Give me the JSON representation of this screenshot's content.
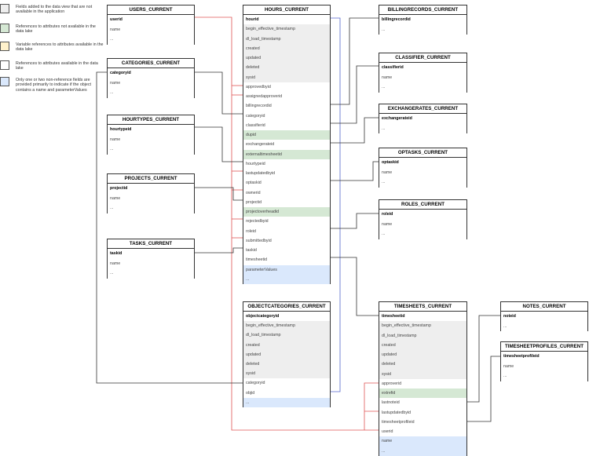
{
  "legend": [
    {
      "text": "Fields added to the data view that are not available in the application",
      "color": "#eeeeee"
    },
    {
      "text": "References to attributes not available in the data lake",
      "color": "#d5e8d4"
    },
    {
      "text": "Variable references to attributes available in the data lake",
      "color": "#fff2cc"
    },
    {
      "text": "References to attributes available in the data lake",
      "color": "#ffffff"
    },
    {
      "text": "Only one or two non-reference fields are provided primarily to indicate if the object contains a name and parameterValues",
      "color": "#dae8fc"
    }
  ],
  "tables": [
    {
      "title": "USERS_CURRENT",
      "rows": [
        {
          "text": "userid",
          "fill": "#ffffff"
        },
        {
          "text": "name",
          "fill": "#ffffff"
        },
        {
          "text": "...",
          "fill": "#ffffff"
        }
      ]
    },
    {
      "title": "CATEGORIES_CURRENT",
      "rows": [
        {
          "text": "categoryid",
          "fill": "#ffffff"
        },
        {
          "text": "name",
          "fill": "#ffffff"
        },
        {
          "text": "...",
          "fill": "#ffffff"
        }
      ]
    },
    {
      "title": "HOURTYPES_CURRENT",
      "rows": [
        {
          "text": "hourtypeid",
          "fill": "#ffffff"
        },
        {
          "text": "name",
          "fill": "#ffffff"
        },
        {
          "text": "...",
          "fill": "#ffffff"
        }
      ]
    },
    {
      "title": "PROJECTS_CURRENT",
      "rows": [
        {
          "text": "projectid",
          "fill": "#ffffff"
        },
        {
          "text": "name",
          "fill": "#ffffff"
        },
        {
          "text": "...",
          "fill": "#ffffff"
        }
      ]
    },
    {
      "title": "TASKS_CURRENT",
      "rows": [
        {
          "text": "taskid",
          "fill": "#ffffff"
        },
        {
          "text": "name",
          "fill": "#ffffff"
        },
        {
          "text": "...",
          "fill": "#ffffff"
        }
      ]
    },
    {
      "title": "HOURS_CURRENT",
      "rows": [
        {
          "text": "hourid",
          "fill": "#ffffff"
        },
        {
          "text": "begin_effective_timestamp",
          "fill": "#eeeeee"
        },
        {
          "text": "dl_load_timestamp",
          "fill": "#eeeeee"
        },
        {
          "text": "created",
          "fill": "#eeeeee"
        },
        {
          "text": "updated",
          "fill": "#eeeeee"
        },
        {
          "text": "deleted",
          "fill": "#eeeeee"
        },
        {
          "text": "sysid",
          "fill": "#eeeeee"
        },
        {
          "text": "approvedbyid",
          "fill": "#ffffff"
        },
        {
          "text": "assignedapproverid",
          "fill": "#ffffff"
        },
        {
          "text": "billingrecordid",
          "fill": "#ffffff"
        },
        {
          "text": "categoryid",
          "fill": "#ffffff"
        },
        {
          "text": "classifierid",
          "fill": "#ffffff"
        },
        {
          "text": "dupid",
          "fill": "#d5e8d4"
        },
        {
          "text": "exchangerateid",
          "fill": "#ffffff"
        },
        {
          "text": "externaltimesheetid",
          "fill": "#d5e8d4"
        },
        {
          "text": "hourtypeid",
          "fill": "#ffffff"
        },
        {
          "text": "lastupdatedbyid",
          "fill": "#ffffff"
        },
        {
          "text": "optaskid",
          "fill": "#ffffff"
        },
        {
          "text": "ownerid",
          "fill": "#ffffff"
        },
        {
          "text": "projectid",
          "fill": "#ffffff"
        },
        {
          "text": "projectoverheadid",
          "fill": "#d5e8d4"
        },
        {
          "text": "rejectedbyid",
          "fill": "#ffffff"
        },
        {
          "text": "roleid",
          "fill": "#ffffff"
        },
        {
          "text": "submittedbyid",
          "fill": "#ffffff"
        },
        {
          "text": "taskid",
          "fill": "#ffffff"
        },
        {
          "text": "timesheetid",
          "fill": "#ffffff"
        },
        {
          "text": "parameterValues",
          "fill": "#dae8fc"
        },
        {
          "text": "...",
          "fill": "#dae8fc"
        }
      ]
    },
    {
      "title": "BILLINGRECORDS_CURRENT",
      "rows": [
        {
          "text": "billingrecordid",
          "fill": "#ffffff"
        },
        {
          "text": "...",
          "fill": "#ffffff"
        }
      ]
    },
    {
      "title": "CLASSIFIER_CURRENT",
      "rows": [
        {
          "text": "classifierid",
          "fill": "#ffffff"
        },
        {
          "text": "name",
          "fill": "#ffffff"
        },
        {
          "text": "...",
          "fill": "#ffffff"
        }
      ]
    },
    {
      "title": "EXCHANGERATES_CURRENT",
      "rows": [
        {
          "text": "exchangerateid",
          "fill": "#ffffff"
        },
        {
          "text": "...",
          "fill": "#ffffff"
        }
      ]
    },
    {
      "title": "OPTASKS_CURRENT",
      "rows": [
        {
          "text": "optaskid",
          "fill": "#ffffff"
        },
        {
          "text": "name",
          "fill": "#ffffff"
        },
        {
          "text": "...",
          "fill": "#ffffff"
        }
      ]
    },
    {
      "title": "ROLES_CURRENT",
      "rows": [
        {
          "text": "roleid",
          "fill": "#ffffff"
        },
        {
          "text": "name",
          "fill": "#ffffff"
        },
        {
          "text": "...",
          "fill": "#ffffff"
        }
      ]
    },
    {
      "title": "OBJECTCATEGORIES_CURRENT",
      "rows": [
        {
          "text": "objectcategoryid",
          "fill": "#ffffff"
        },
        {
          "text": "begin_effective_timestamp",
          "fill": "#eeeeee"
        },
        {
          "text": "dl_load_timestamp",
          "fill": "#eeeeee"
        },
        {
          "text": "created",
          "fill": "#eeeeee"
        },
        {
          "text": "updated",
          "fill": "#eeeeee"
        },
        {
          "text": "deleted",
          "fill": "#eeeeee"
        },
        {
          "text": "sysid",
          "fill": "#eeeeee"
        },
        {
          "text": "categoryid",
          "fill": "#ffffff"
        },
        {
          "text": "objid",
          "fill": "#ffffff"
        },
        {
          "text": "...",
          "fill": "#dae8fc"
        }
      ]
    },
    {
      "title": "TIMESHEETS_CURRENT",
      "rows": [
        {
          "text": "timesheetid",
          "fill": "#ffffff"
        },
        {
          "text": "begin_effective_timestamp",
          "fill": "#eeeeee"
        },
        {
          "text": "dl_load_timestamp",
          "fill": "#eeeeee"
        },
        {
          "text": "created",
          "fill": "#eeeeee"
        },
        {
          "text": "updated",
          "fill": "#eeeeee"
        },
        {
          "text": "deleted",
          "fill": "#eeeeee"
        },
        {
          "text": "sysid",
          "fill": "#eeeeee"
        },
        {
          "text": "approverid",
          "fill": "#ffffff"
        },
        {
          "text": "extrefid",
          "fill": "#d5e8d4"
        },
        {
          "text": "lastnoteid",
          "fill": "#ffffff"
        },
        {
          "text": "lastupdatedbyid",
          "fill": "#ffffff"
        },
        {
          "text": "timesheetprofileid",
          "fill": "#ffffff"
        },
        {
          "text": "userid",
          "fill": "#ffffff"
        },
        {
          "text": "name",
          "fill": "#dae8fc"
        },
        {
          "text": "...",
          "fill": "#dae8fc"
        }
      ]
    },
    {
      "title": "NOTES_CURRENT",
      "rows": [
        {
          "text": "noteid",
          "fill": "#ffffff"
        },
        {
          "text": "...",
          "fill": "#ffffff"
        }
      ]
    },
    {
      "title": "TIMESHEETPROFILES_CURRENT",
      "rows": [
        {
          "text": "timesheetprofileid",
          "fill": "#ffffff"
        },
        {
          "text": "name",
          "fill": "#ffffff"
        },
        {
          "text": "...",
          "fill": "#ffffff"
        }
      ]
    }
  ]
}
